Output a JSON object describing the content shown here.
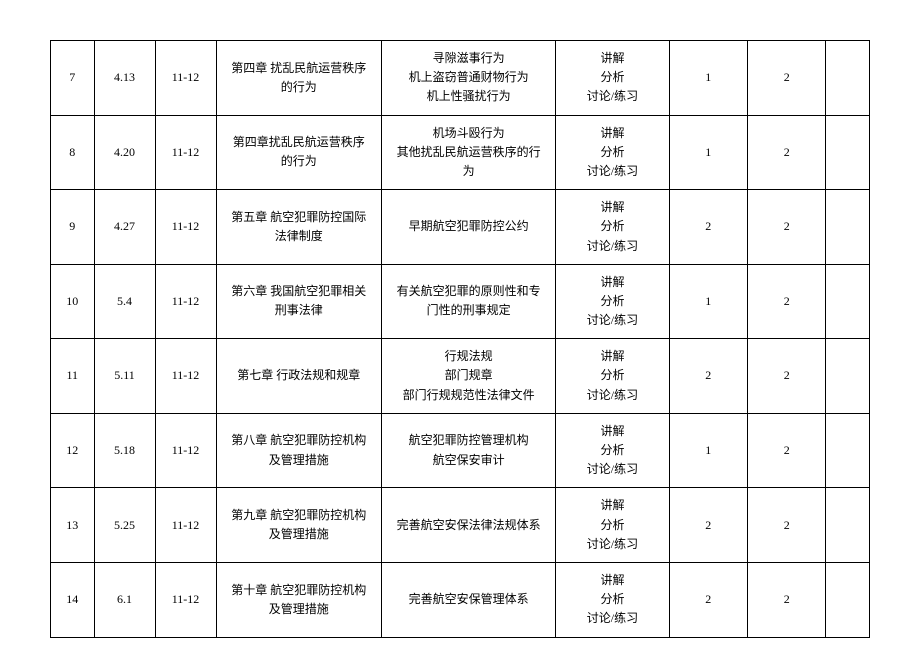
{
  "table": {
    "column_widths": [
      "5%",
      "7%",
      "7%",
      "19%",
      "20%",
      "13%",
      "9%",
      "9%",
      "5%"
    ],
    "border_color": "#000000",
    "font_size": 12,
    "font_family": "SimSun",
    "background_color": "#ffffff",
    "rows": [
      {
        "index": "7",
        "date": "4.13",
        "period": "11-12",
        "chapter": "第四章 扰乱民航运营秩序\n的行为",
        "content": "寻隙滋事行为\n机上盗窃普通财物行为\n机上性骚扰行为",
        "method": "讲解\n分析\n讨论/练习",
        "col6": "1",
        "col7": "2",
        "col8": ""
      },
      {
        "index": "8",
        "date": "4.20",
        "period": "11-12",
        "chapter": "第四章扰乱民航运营秩序\n的行为",
        "content": "机场斗殴行为\n其他扰乱民航运营秩序的行\n为",
        "method": "讲解\n分析\n讨论/练习",
        "col6": "1",
        "col7": "2",
        "col8": ""
      },
      {
        "index": "9",
        "date": "4.27",
        "period": "11-12",
        "chapter": "第五章 航空犯罪防控国际\n法律制度",
        "content": "早期航空犯罪防控公约",
        "method": "讲解\n分析\n讨论/练习",
        "col6": "2",
        "col7": "2",
        "col8": ""
      },
      {
        "index": "10",
        "date": "5.4",
        "period": "11-12",
        "chapter": "第六章 我国航空犯罪相关\n刑事法律",
        "content": "有关航空犯罪的原则性和专\n门性的刑事规定",
        "method": "讲解\n分析\n讨论/练习",
        "col6": "1",
        "col7": "2",
        "col8": ""
      },
      {
        "index": "11",
        "date": "5.11",
        "period": "11-12",
        "chapter": "第七章 行政法规和规章",
        "content": "行规法规\n部门规章\n部门行规规范性法律文件",
        "method": "讲解\n分析\n讨论/练习",
        "col6": "2",
        "col7": "2",
        "col8": ""
      },
      {
        "index": "12",
        "date": "5.18",
        "period": "11-12",
        "chapter": "第八章 航空犯罪防控机构\n及管理措施",
        "content": "航空犯罪防控管理机构\n航空保安审计",
        "method": "讲解\n分析\n讨论/练习",
        "col6": "1",
        "col7": "2",
        "col8": ""
      },
      {
        "index": "13",
        "date": "5.25",
        "period": "11-12",
        "chapter": "第九章 航空犯罪防控机构\n及管理措施",
        "content": "完善航空安保法律法规体系",
        "method": "讲解\n分析\n讨论/练习",
        "col6": "2",
        "col7": "2",
        "col8": ""
      },
      {
        "index": "14",
        "date": "6.1",
        "period": "11-12",
        "chapter": "第十章 航空犯罪防控机构\n及管理措施",
        "content": "完善航空安保管理体系",
        "method": "讲解\n分析\n讨论/练习",
        "col6": "2",
        "col7": "2",
        "col8": ""
      }
    ]
  }
}
